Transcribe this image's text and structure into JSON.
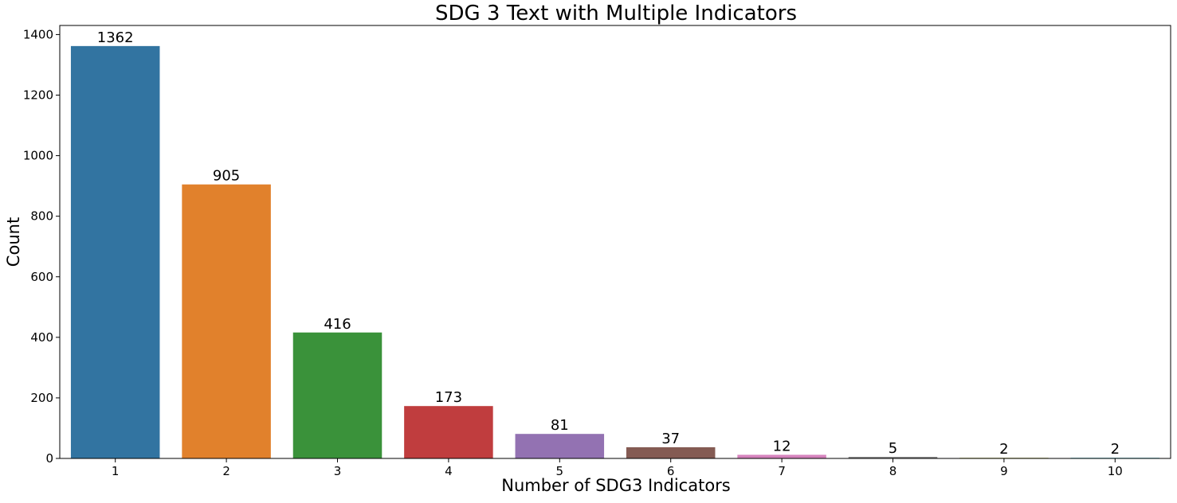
{
  "chart_data": {
    "type": "bar",
    "title": "SDG 3 Text with Multiple Indicators",
    "xlabel": "Number of SDG3 Indicators",
    "ylabel": "Count",
    "categories": [
      "1",
      "2",
      "3",
      "4",
      "5",
      "6",
      "7",
      "8",
      "9",
      "10"
    ],
    "values": [
      1362,
      905,
      416,
      173,
      81,
      37,
      12,
      5,
      2,
      2
    ],
    "data_labels": [
      "1362",
      "905",
      "416",
      "173",
      "81",
      "37",
      "12",
      "5",
      "2",
      "2"
    ],
    "colors": [
      "#3274a1",
      "#e1812c",
      "#3a923a",
      "#c03d3e",
      "#9372b2",
      "#845b53",
      "#d684bd",
      "#7f7f7f",
      "#a9aa35",
      "#2eb3c2"
    ],
    "ylim": [
      0,
      1430
    ],
    "yticks": [
      0,
      200,
      400,
      600,
      800,
      1000,
      1200,
      1400
    ],
    "ytick_labels": [
      "0",
      "200",
      "400",
      "600",
      "800",
      "1000",
      "1200",
      "1400"
    ],
    "grid": false,
    "legend": "none"
  }
}
